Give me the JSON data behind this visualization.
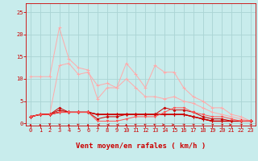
{
  "background_color": "#c8ecec",
  "grid_color": "#aad4d4",
  "xlabel": "Vent moyen/en rafales ( km/h )",
  "xlabel_color": "#cc0000",
  "xlabel_fontsize": 6.5,
  "tick_color": "#cc0000",
  "tick_fontsize": 5,
  "ytick_values": [
    0,
    5,
    10,
    15,
    20,
    25
  ],
  "xtick_values": [
    0,
    1,
    2,
    3,
    4,
    5,
    6,
    7,
    8,
    9,
    10,
    11,
    12,
    13,
    14,
    15,
    16,
    17,
    18,
    19,
    20,
    21,
    22,
    23
  ],
  "xlim": [
    -0.5,
    23.5
  ],
  "ylim": [
    -0.5,
    27
  ],
  "line1_x": [
    0,
    1,
    2,
    3,
    4,
    5,
    6,
    7,
    8,
    9,
    10,
    11,
    12,
    13,
    14,
    15,
    16,
    17,
    18,
    19,
    20,
    21,
    22,
    23
  ],
  "line1_y": [
    10.5,
    10.5,
    10.5,
    21.5,
    14.5,
    12.5,
    12.0,
    5.5,
    8.0,
    8.0,
    10.0,
    8.0,
    6.0,
    6.0,
    5.5,
    6.0,
    5.0,
    4.5,
    3.5,
    2.5,
    2.0,
    1.5,
    1.0,
    0.5
  ],
  "line2_x": [
    0,
    1,
    2,
    3,
    4,
    5,
    6,
    7,
    8,
    9,
    10,
    11,
    12,
    13,
    14,
    15,
    16,
    17,
    18,
    19,
    20,
    21,
    22,
    23
  ],
  "line2_y": [
    1.5,
    2.0,
    2.0,
    13.0,
    13.5,
    11.0,
    11.5,
    8.5,
    9.0,
    8.0,
    13.5,
    11.0,
    8.0,
    13.0,
    11.5,
    11.5,
    8.0,
    6.0,
    5.0,
    3.5,
    3.5,
    2.0,
    1.5,
    0.5
  ],
  "line3_x": [
    0,
    1,
    2,
    3,
    4,
    5,
    6,
    7,
    8,
    9,
    10,
    11,
    12,
    13,
    14,
    15,
    16,
    17,
    18,
    19,
    20,
    21,
    22,
    23
  ],
  "line3_y": [
    1.5,
    2.0,
    2.0,
    3.5,
    2.5,
    2.5,
    2.5,
    1.0,
    1.5,
    1.5,
    2.0,
    2.0,
    2.0,
    2.0,
    3.5,
    3.0,
    3.0,
    2.5,
    1.5,
    1.0,
    1.0,
    0.5,
    0.5,
    0.5
  ],
  "line4_x": [
    0,
    1,
    2,
    3,
    4,
    5,
    6,
    7,
    8,
    9,
    10,
    11,
    12,
    13,
    14,
    15,
    16,
    17,
    18,
    19,
    20,
    21,
    22,
    23
  ],
  "line4_y": [
    1.5,
    2.0,
    2.0,
    2.5,
    2.5,
    2.5,
    2.5,
    2.0,
    2.0,
    2.0,
    2.0,
    2.0,
    2.0,
    2.0,
    2.0,
    2.0,
    2.0,
    1.5,
    1.0,
    0.5,
    0.5,
    0.5,
    0.5,
    0.5
  ],
  "line5_x": [
    0,
    1,
    2,
    3,
    4,
    5,
    6,
    7,
    8,
    9,
    10,
    11,
    12,
    13,
    14,
    15,
    16,
    17,
    18,
    19,
    20,
    21,
    22,
    23
  ],
  "line5_y": [
    1.5,
    2.0,
    2.0,
    2.5,
    2.5,
    2.5,
    2.5,
    2.0,
    2.0,
    2.0,
    2.0,
    2.0,
    2.0,
    2.0,
    2.0,
    2.0,
    2.0,
    1.5,
    1.0,
    0.5,
    0.5,
    0.5,
    0.5,
    0.5
  ],
  "line6_x": [
    0,
    1,
    2,
    3,
    4,
    5,
    6,
    7,
    8,
    9,
    10,
    11,
    12,
    13,
    14,
    15,
    16,
    17,
    18,
    19,
    20,
    21,
    22,
    23
  ],
  "line6_y": [
    1.5,
    2.0,
    2.0,
    3.0,
    2.5,
    2.5,
    2.5,
    2.0,
    2.0,
    2.0,
    2.0,
    2.0,
    2.0,
    2.0,
    2.0,
    2.0,
    2.0,
    1.5,
    1.0,
    0.5,
    0.5,
    0.5,
    0.5,
    0.5
  ],
  "line7_x": [
    0,
    1,
    2,
    3,
    4,
    5,
    6,
    7,
    8,
    9,
    10,
    11,
    12,
    13,
    14,
    15,
    16,
    17,
    18,
    19,
    20,
    21,
    22,
    23
  ],
  "line7_y": [
    1.5,
    2.0,
    2.0,
    2.5,
    2.5,
    2.5,
    2.5,
    0.5,
    0.5,
    0.5,
    1.0,
    1.5,
    1.5,
    1.5,
    2.5,
    3.5,
    3.5,
    2.5,
    2.0,
    1.5,
    1.5,
    1.0,
    0.5,
    0.5
  ],
  "light_pink": "#ffaaaa",
  "dark_red": "#cc0000",
  "medium_red": "#ff5555",
  "arrow_dirs": [
    0,
    0,
    180,
    45,
    0,
    315,
    0,
    270,
    270,
    270,
    0,
    315,
    315,
    315,
    90,
    90,
    45,
    45,
    45,
    45,
    45,
    90,
    45,
    45
  ]
}
